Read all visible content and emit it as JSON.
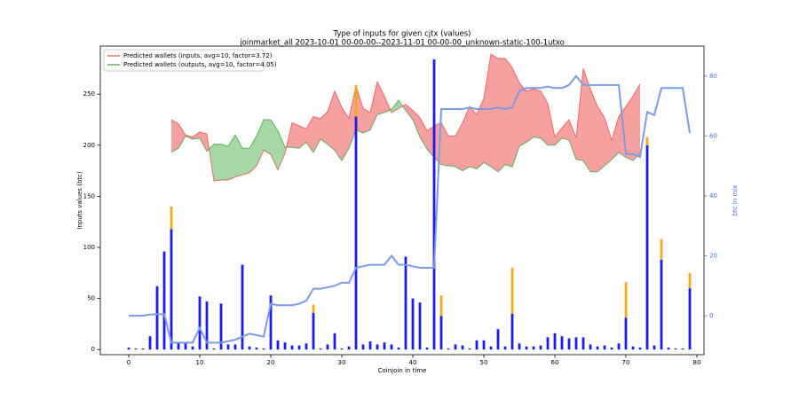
{
  "chart_data": {
    "type": "bar",
    "title": "Type of inputs for given cjtx (values)",
    "subtitle": "joinmarket_all 2023-10-01 00-00-00--2023-11-01 00-00-00_unknown-static-100-1utxo",
    "xlabel": "Coinjoin in time",
    "ylabel": "Inputs values (btc)",
    "y2label": "btc in mix",
    "x": [
      0,
      1,
      2,
      3,
      4,
      5,
      6,
      7,
      8,
      9,
      10,
      11,
      12,
      13,
      14,
      15,
      16,
      17,
      18,
      19,
      20,
      21,
      22,
      23,
      24,
      25,
      26,
      27,
      28,
      29,
      30,
      31,
      32,
      33,
      34,
      35,
      36,
      37,
      38,
      39,
      40,
      41,
      42,
      43,
      44,
      45,
      46,
      47,
      48,
      49,
      50,
      51,
      52,
      53,
      54,
      55,
      56,
      57,
      58,
      59,
      60,
      61,
      62,
      63,
      64,
      65,
      66,
      67,
      68,
      69,
      70,
      71,
      72,
      73,
      74,
      75,
      76,
      77,
      78,
      79
    ],
    "xlim": [
      -4,
      81
    ],
    "xticks": [
      0,
      10,
      20,
      30,
      40,
      50,
      60,
      70,
      80
    ],
    "ylim": [
      -5,
      297
    ],
    "yticks": [
      0,
      50,
      100,
      150,
      200,
      250
    ],
    "y2lim": [
      -13,
      90
    ],
    "y2ticks": [
      0,
      20,
      40,
      60,
      80
    ],
    "series": [
      {
        "color": "#1c1ce6",
        "values": [
          2,
          1,
          1,
          13,
          62,
          96,
          118,
          6,
          6,
          3,
          52,
          47,
          1,
          45,
          5,
          5,
          83,
          3,
          2,
          1,
          53,
          9,
          7,
          4,
          4,
          6,
          36,
          1,
          5,
          16,
          1,
          3,
          228,
          5,
          8,
          5,
          7,
          5,
          2,
          91,
          50,
          46,
          2,
          284,
          33,
          1,
          5,
          4,
          1,
          9,
          9,
          3,
          20,
          3,
          35,
          6,
          3,
          3,
          4,
          12,
          16,
          13,
          11,
          12,
          12,
          5,
          3,
          4,
          2,
          6,
          31,
          3,
          2,
          200,
          4,
          88,
          2,
          1,
          1,
          60
        ]
      },
      {
        "color": "#f5a623",
        "values": [
          0,
          0,
          0,
          0,
          0,
          0,
          22,
          0,
          0,
          0,
          0,
          0,
          0,
          0,
          0,
          0,
          0,
          0,
          0,
          0,
          0,
          0,
          0,
          0,
          0,
          0,
          8,
          0,
          0,
          0,
          0,
          0,
          31,
          0,
          0,
          0,
          0,
          0,
          0,
          0,
          0,
          0,
          0,
          0,
          20,
          0,
          0,
          0,
          0,
          0,
          0,
          0,
          0,
          0,
          45,
          0,
          0,
          0,
          0,
          0,
          0,
          0,
          0,
          0,
          0,
          0,
          0,
          0,
          0,
          0,
          35,
          0,
          0,
          8,
          0,
          20,
          0,
          0,
          0,
          15
        ]
      }
    ],
    "fill_between": {
      "x": [
        6,
        7,
        8,
        9,
        10,
        11,
        12,
        13,
        14,
        15,
        16,
        17,
        18,
        19,
        20,
        21,
        22,
        23,
        24,
        25,
        26,
        27,
        28,
        29,
        30,
        31,
        32,
        33,
        34,
        35,
        36,
        37,
        38,
        39,
        40,
        41,
        42,
        43,
        44,
        45,
        46,
        47,
        48,
        49,
        50,
        51,
        52,
        53,
        54,
        55,
        56,
        57,
        58,
        59,
        60,
        61,
        62,
        63,
        64,
        65,
        66,
        67,
        68,
        69,
        70,
        71,
        72
      ],
      "inputs": {
        "name": "Predicted wallets (inputs, avg=10, factor=3.72)",
        "color": "#e8504a",
        "values": [
          225,
          221,
          210,
          208,
          213,
          211,
          165,
          166,
          166,
          169,
          171,
          173,
          180,
          195,
          191,
          176,
          192,
          222,
          219,
          216,
          228,
          226,
          233,
          253,
          237,
          226,
          258,
          236,
          232,
          262,
          248,
          232,
          236,
          240,
          234,
          227,
          214,
          219,
          222,
          209,
          209,
          222,
          238,
          230,
          246,
          289,
          285,
          285,
          276,
          261,
          253,
          255,
          253,
          241,
          208,
          217,
          225,
          207,
          275,
          255,
          238,
          227,
          205,
          228,
          238,
          248,
          260
        ]
      },
      "outputs": {
        "name": "Predicted wallets (outputs, avg=10, factor=4.05)",
        "color": "#3fa33f",
        "values": [
          193,
          197,
          209,
          206,
          207,
          194,
          201,
          201,
          199,
          210,
          197,
          197,
          209,
          225,
          225,
          214,
          198,
          198,
          197,
          203,
          193,
          206,
          201,
          195,
          185,
          197,
          215,
          212,
          215,
          230,
          232,
          235,
          244,
          234,
          225,
          208,
          196,
          188,
          181,
          180,
          179,
          175,
          179,
          177,
          183,
          179,
          174,
          181,
          179,
          199,
          203,
          208,
          207,
          200,
          200,
          207,
          205,
          186,
          185,
          174,
          174,
          180,
          186,
          193,
          188,
          185,
          192
        ]
      }
    },
    "line": {
      "axis": "y2",
      "color": "#7b9be6",
      "values": [
        0,
        0,
        0,
        0.4,
        0.5,
        0.5,
        -9,
        -9,
        -9,
        -9,
        -4,
        -9,
        -9,
        -9,
        -8.5,
        -8,
        -7,
        -6,
        -6.5,
        -7,
        4,
        3.5,
        3.5,
        3.5,
        4,
        5,
        9,
        9,
        9.5,
        10,
        11,
        11,
        16,
        16.5,
        17,
        17,
        17,
        20,
        17,
        17,
        16.5,
        16,
        16,
        16,
        69,
        69,
        69,
        69,
        69.5,
        69,
        69,
        69,
        69.5,
        69,
        69.5,
        75,
        76,
        76,
        76,
        76.5,
        76,
        76,
        77,
        80,
        77,
        77,
        77,
        77,
        77,
        77,
        54,
        54,
        53,
        68,
        67,
        76,
        76,
        76,
        76,
        61
      ]
    },
    "legend": "upper left"
  }
}
